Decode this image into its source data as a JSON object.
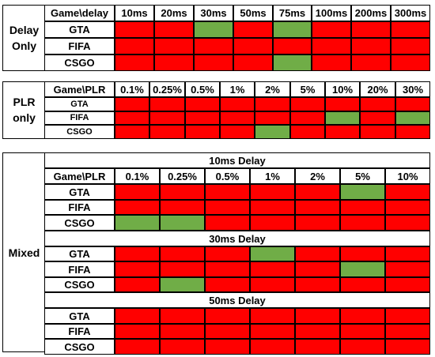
{
  "colors": {
    "bad": "#ff0000",
    "good": "#70ad47"
  },
  "delay_only": {
    "label_line1": "Delay",
    "label_line2": "Only",
    "corner": "Game\\delay",
    "columns": [
      "10ms",
      "20ms",
      "30ms",
      "50ms",
      "75ms",
      "100ms",
      "200ms",
      "300ms"
    ],
    "rows": [
      {
        "game": "GTA",
        "good": [
          2,
          4
        ]
      },
      {
        "game": "FIFA",
        "good": []
      },
      {
        "game": "CSGO",
        "good": [
          4
        ]
      }
    ]
  },
  "plr_only": {
    "label_line1": "PLR",
    "label_line2": "only",
    "corner": "Game\\PLR",
    "columns": [
      "0.1%",
      "0.25%",
      "0.5%",
      "1%",
      "2%",
      "5%",
      "10%",
      "20%",
      "30%"
    ],
    "rows": [
      {
        "game": "GTA",
        "good": []
      },
      {
        "game": "FIFA",
        "good": [
          6,
          8
        ]
      },
      {
        "game": "CSGO",
        "good": [
          4
        ]
      }
    ]
  },
  "mixed": {
    "label": "Mixed",
    "corner": "Game\\PLR",
    "columns": [
      "0.1%",
      "0.25%",
      "0.5%",
      "1%",
      "2%",
      "5%",
      "10%"
    ],
    "blocks": [
      {
        "title": "10ms Delay",
        "rows": [
          {
            "game": "GTA",
            "good": [
              5
            ]
          },
          {
            "game": "FIFA",
            "good": []
          },
          {
            "game": "CSGO",
            "good": [
              0,
              1
            ]
          }
        ]
      },
      {
        "title": "30ms Delay",
        "rows": [
          {
            "game": "GTA",
            "good": [
              3
            ]
          },
          {
            "game": "FIFA",
            "good": [
              5
            ]
          },
          {
            "game": "CSGO",
            "good": [
              1
            ]
          }
        ]
      },
      {
        "title": "50ms Delay",
        "rows": [
          {
            "game": "GTA",
            "good": []
          },
          {
            "game": "FIFA",
            "good": []
          },
          {
            "game": "CSGO",
            "good": []
          }
        ]
      }
    ]
  }
}
